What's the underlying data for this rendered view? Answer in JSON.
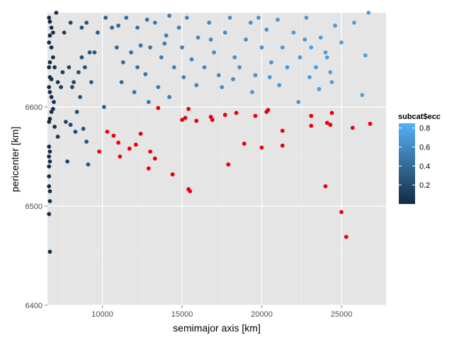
{
  "chart_data": {
    "type": "scatter",
    "title": "",
    "xlabel": "semimajor axis [km]",
    "ylabel": "pericenter [km]",
    "xlim": [
      6550,
      27800
    ],
    "ylim": [
      6400,
      6695
    ],
    "xticks": [
      10000,
      15000,
      20000,
      25000
    ],
    "yticks": [
      6400,
      6500,
      6600
    ],
    "grid": true,
    "legend": {
      "title": "subcat$ecc",
      "position": "right",
      "ticks": [
        0.2,
        0.4,
        0.6,
        0.8
      ],
      "range": [
        0.0,
        0.85
      ],
      "color_low": "#132b43",
      "color_high": "#56b1f7"
    },
    "highlight_color": "#e8000b",
    "series": [
      {
        "colored_by": "ecc",
        "points": [
          [
            6650,
            6492
          ],
          [
            6650,
            6520
          ],
          [
            6650,
            6530
          ],
          [
            6650,
            6540
          ],
          [
            6650,
            6550
          ],
          [
            6650,
            6560
          ],
          [
            6650,
            6585
          ],
          [
            6650,
            6620
          ],
          [
            6650,
            6640
          ],
          [
            6650,
            6665
          ],
          [
            6650,
            6690
          ],
          [
            6700,
            6454
          ],
          [
            6700,
            6505
          ],
          [
            6700,
            6515
          ],
          [
            6700,
            6545
          ],
          [
            6700,
            6555
          ],
          [
            6700,
            6588
          ],
          [
            6700,
            6615
          ],
          [
            6700,
            6630
          ],
          [
            6700,
            6645
          ],
          [
            6700,
            6672
          ],
          [
            6700,
            6686
          ],
          [
            6800,
            6595
          ],
          [
            6800,
            6610
          ],
          [
            6800,
            6628
          ],
          [
            6800,
            6660
          ],
          [
            6800,
            6680
          ],
          [
            6900,
            6598
          ],
          [
            6900,
            6650
          ],
          [
            6900,
            6675
          ],
          [
            6950,
            6605
          ],
          [
            7000,
            6580
          ],
          [
            7000,
            6640
          ],
          [
            7100,
            6695
          ],
          [
            7200,
            6570
          ],
          [
            7200,
            6625
          ],
          [
            7400,
            6620
          ],
          [
            7500,
            6635
          ],
          [
            7600,
            6675
          ],
          [
            7700,
            6585
          ],
          [
            7800,
            6545
          ],
          [
            7900,
            6640
          ],
          [
            8000,
            6582
          ],
          [
            8000,
            6685
          ],
          [
            8100,
            6620
          ],
          [
            8200,
            6625
          ],
          [
            8300,
            6575
          ],
          [
            8400,
            6595
          ],
          [
            8500,
            6635
          ],
          [
            8600,
            6610
          ],
          [
            8700,
            6650
          ],
          [
            8700,
            6680
          ],
          [
            8800,
            6578
          ],
          [
            8900,
            6640
          ],
          [
            9000,
            6565
          ],
          [
            9000,
            6685
          ],
          [
            9100,
            6542
          ],
          [
            9200,
            6655
          ],
          [
            9300,
            6625
          ],
          [
            9500,
            6655
          ],
          [
            9700,
            6675
          ],
          [
            10100,
            6600
          ],
          [
            10200,
            6690
          ],
          [
            10600,
            6680
          ]
        ]
      },
      {
        "colored_by": "ecc",
        "points": [
          [
            11000,
            6682
          ],
          [
            11200,
            6625
          ],
          [
            11500,
            6690
          ],
          [
            11800,
            6655
          ],
          [
            12000,
            6615
          ],
          [
            12200,
            6680
          ],
          [
            12400,
            6662
          ],
          [
            12700,
            6633
          ],
          [
            12800,
            6688
          ],
          [
            13000,
            6660
          ],
          [
            13300,
            6685
          ],
          [
            13500,
            6620
          ],
          [
            13700,
            6650
          ],
          [
            14000,
            6672
          ],
          [
            14200,
            6692
          ],
          [
            14500,
            6640
          ],
          [
            14800,
            6680
          ],
          [
            15000,
            6660
          ],
          [
            15300,
            6690
          ],
          [
            15600,
            6648
          ],
          [
            16000,
            6670
          ],
          [
            16400,
            6640
          ],
          [
            16700,
            6685
          ],
          [
            17000,
            6655
          ],
          [
            17300,
            6632
          ],
          [
            17700,
            6675
          ],
          [
            18000,
            6690
          ],
          [
            18300,
            6650
          ],
          [
            18600,
            6640
          ],
          [
            19000,
            6668
          ],
          [
            19300,
            6685
          ],
          [
            19600,
            6632
          ],
          [
            20000,
            6660
          ],
          [
            20300,
            6678
          ],
          [
            20600,
            6645
          ],
          [
            21000,
            6688
          ],
          [
            21300,
            6660
          ],
          [
            21600,
            6640
          ],
          [
            22000,
            6675
          ],
          [
            22400,
            6650
          ],
          [
            22800,
            6690
          ],
          [
            23100,
            6660
          ],
          [
            23400,
            6640
          ],
          [
            23700,
            6670
          ],
          [
            24000,
            6655
          ],
          [
            24300,
            6635
          ],
          [
            24600,
            6682
          ],
          [
            25000,
            6665
          ],
          [
            25800,
            6685
          ],
          [
            26300,
            6612
          ],
          [
            26500,
            6652
          ],
          [
            26700,
            6695
          ],
          [
            11300,
            6645
          ],
          [
            12900,
            6605
          ],
          [
            14200,
            6610
          ],
          [
            15900,
            6622
          ],
          [
            17500,
            6620
          ],
          [
            19400,
            6615
          ],
          [
            21100,
            6622
          ],
          [
            22300,
            6605
          ],
          [
            23600,
            6618
          ],
          [
            24400,
            6625
          ],
          [
            13900,
            6664
          ],
          [
            16800,
            6668
          ],
          [
            19800,
            6690
          ],
          [
            22700,
            6668
          ],
          [
            10900,
            6660
          ],
          [
            12200,
            6640
          ],
          [
            15100,
            6630
          ],
          [
            18200,
            6628
          ],
          [
            20500,
            6630
          ],
          [
            23000,
            6630
          ],
          [
            24100,
            6650
          ]
        ]
      }
    ],
    "highlighted_points": [
      [
        9800,
        6555
      ],
      [
        10300,
        6575
      ],
      [
        10700,
        6571
      ],
      [
        11000,
        6564
      ],
      [
        11100,
        6550
      ],
      [
        11700,
        6558
      ],
      [
        12100,
        6562
      ],
      [
        12400,
        6573
      ],
      [
        12900,
        6538
      ],
      [
        13000,
        6555
      ],
      [
        13300,
        6548
      ],
      [
        13500,
        6599
      ],
      [
        14400,
        6532
      ],
      [
        15000,
        6587
      ],
      [
        15200,
        6589
      ],
      [
        15400,
        6598
      ],
      [
        15400,
        6517
      ],
      [
        15500,
        6515
      ],
      [
        15900,
        6586
      ],
      [
        16800,
        6590
      ],
      [
        16900,
        6587
      ],
      [
        17700,
        6592
      ],
      [
        17900,
        6542
      ],
      [
        18400,
        6594
      ],
      [
        18900,
        6563
      ],
      [
        19600,
        6591
      ],
      [
        20000,
        6559
      ],
      [
        20300,
        6595
      ],
      [
        20400,
        6597
      ],
      [
        21300,
        6576
      ],
      [
        21300,
        6561
      ],
      [
        23100,
        6591
      ],
      [
        23100,
        6581
      ],
      [
        24000,
        6520
      ],
      [
        24100,
        6584
      ],
      [
        24300,
        6582
      ],
      [
        24400,
        6594
      ],
      [
        25000,
        6494
      ],
      [
        25300,
        6469
      ],
      [
        25700,
        6579
      ],
      [
        26800,
        6583
      ]
    ]
  }
}
